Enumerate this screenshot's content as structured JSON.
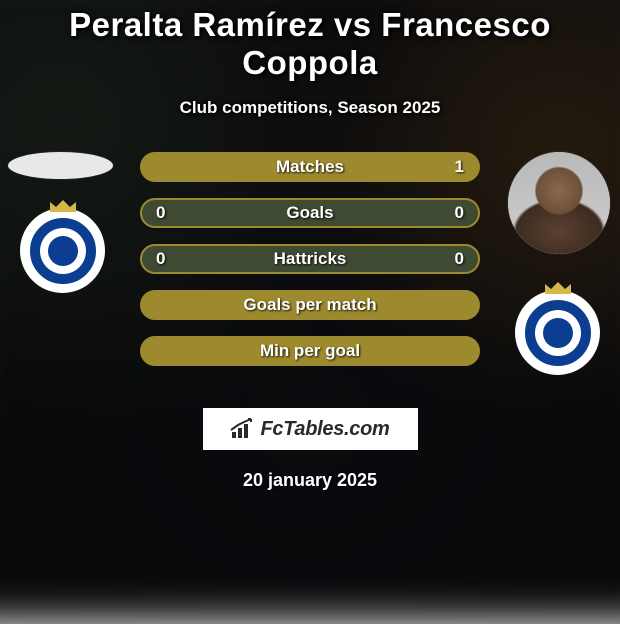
{
  "title": "Peralta Ramírez vs Francesco Coppola",
  "subtitle": "Club competitions, Season 2025",
  "date": "20 january 2025",
  "brand": {
    "text": "FcTables.com"
  },
  "colors": {
    "bar_fill": "#9e8a2e",
    "bar_empty": "#3e4a32",
    "bar_empty_border": "#9e8a2e",
    "text": "#ffffff",
    "club_primary": "#0b3d91",
    "club_white": "#ffffff",
    "crown": "#d4b84a"
  },
  "bars": [
    {
      "label": "Matches",
      "left_val": "",
      "right_val": "1",
      "left_pct": 0,
      "right_pct": 100
    },
    {
      "label": "Goals",
      "left_val": "0",
      "right_val": "0",
      "left_pct": 0,
      "right_pct": 0
    },
    {
      "label": "Hattricks",
      "left_val": "0",
      "right_val": "0",
      "left_pct": 0,
      "right_pct": 0
    },
    {
      "label": "Goals per match",
      "left_val": "",
      "right_val": "",
      "left_pct": 100,
      "right_pct": 0
    },
    {
      "label": "Min per goal",
      "left_val": "",
      "right_val": "",
      "left_pct": 100,
      "right_pct": 0
    }
  ],
  "club_label": "CRUZEIRO"
}
